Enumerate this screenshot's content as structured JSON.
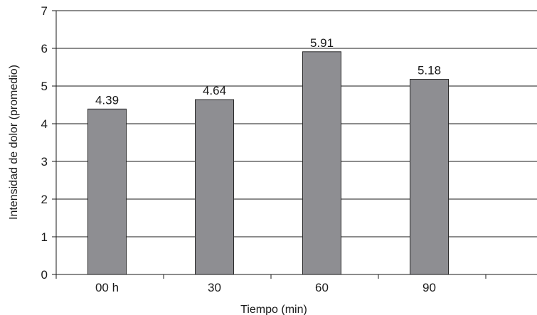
{
  "chart_data": {
    "type": "bar",
    "categories": [
      "00 h",
      "30",
      "60",
      "90"
    ],
    "values": [
      4.39,
      4.64,
      5.91,
      5.18
    ],
    "data_labels": [
      "4.39",
      "4.64",
      "5.91",
      "5.18"
    ],
    "xlabel": "Tiempo (min)",
    "ylabel": "Intensidad de dolor (promedio)",
    "ylim": [
      0,
      7
    ],
    "yticks": [
      "0",
      "1",
      "2",
      "3",
      "4",
      "5",
      "6",
      "7"
    ],
    "grid": true,
    "legend": "none",
    "colors": {
      "bar_fill": "#8e8e92",
      "bar_stroke": "#2a2a2a",
      "grid": "#1a1a1a",
      "axis": "#1a1a1a"
    }
  }
}
